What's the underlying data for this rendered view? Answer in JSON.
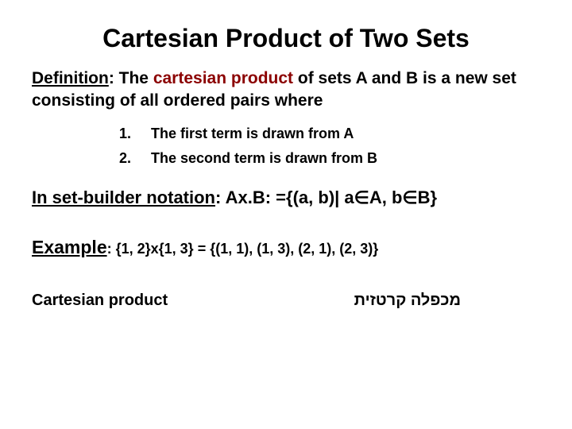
{
  "title": "Cartesian Product of Two Sets",
  "definition": {
    "label": "Definition",
    "prefix": ": The ",
    "term": "cartesian product",
    "rest": " of sets A and B is a new set consisting of all ordered pairs where"
  },
  "list": [
    {
      "num": "1.",
      "text": "The first term is drawn from A"
    },
    {
      "num": "2.",
      "text": "The second term is drawn from B"
    }
  ],
  "sbn": {
    "label": "In set-builder notation",
    "colon": ":  ",
    "expr_pre": "Ax.B: ={(a, b)| a",
    "elem1": "∈",
    "mid": "A, b",
    "elem2": "∈",
    "expr_post": "B}"
  },
  "example": {
    "label": "Example",
    "colon": ": ",
    "lhs": "{1, 2}x{1, 3} = ",
    "rhs": "{(1, 1), (1, 3), (2, 1), (2, 3)}"
  },
  "footer": {
    "left": "Cartesian product",
    "right": "מכפלה קרטזית"
  },
  "colors": {
    "text": "#000000",
    "term": "#8b0000",
    "background": "#ffffff"
  },
  "typography": {
    "title_fontsize": 32,
    "body_fontsize": 21,
    "list_fontsize": 18,
    "font_family": "Arial"
  }
}
